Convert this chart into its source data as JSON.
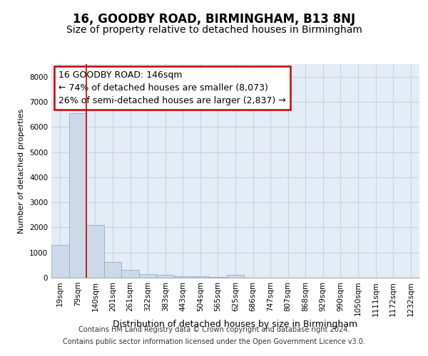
{
  "title1": "16, GOODBY ROAD, BIRMINGHAM, B13 8NJ",
  "title2": "Size of property relative to detached houses in Birmingham",
  "xlabel": "Distribution of detached houses by size in Birmingham",
  "ylabel": "Number of detached properties",
  "categories": [
    "19sqm",
    "79sqm",
    "140sqm",
    "201sqm",
    "261sqm",
    "322sqm",
    "383sqm",
    "443sqm",
    "504sqm",
    "565sqm",
    "625sqm",
    "686sqm",
    "747sqm",
    "807sqm",
    "868sqm",
    "929sqm",
    "990sqm",
    "1050sqm",
    "1111sqm",
    "1172sqm",
    "1232sqm"
  ],
  "values": [
    1300,
    6550,
    2100,
    620,
    300,
    130,
    100,
    50,
    50,
    20,
    100,
    0,
    0,
    0,
    0,
    0,
    0,
    0,
    0,
    0,
    0
  ],
  "bar_color": "#ccd9e8",
  "bar_edge_color": "#90aec8",
  "annotation_line1": "16 GOODBY ROAD: 146sqm",
  "annotation_line2": "← 74% of detached houses are smaller (8,073)",
  "annotation_line3": "26% of semi-detached houses are larger (2,837) →",
  "annotation_box_color": "#ffffff",
  "annotation_box_edge": "#cc0000",
  "red_line_color": "#cc0000",
  "grid_color": "#c8d4e4",
  "background_color": "#e4ecf5",
  "footer1": "Contains HM Land Registry data © Crown copyright and database right 2024.",
  "footer2": "Contains public sector information licensed under the Open Government Licence v3.0.",
  "ylim": [
    0,
    8500
  ],
  "yticks": [
    0,
    1000,
    2000,
    3000,
    4000,
    5000,
    6000,
    7000,
    8000
  ],
  "title1_fontsize": 12,
  "title2_fontsize": 10,
  "xlabel_fontsize": 9,
  "ylabel_fontsize": 8,
  "tick_fontsize": 7.5,
  "footer_fontsize": 7,
  "annot_fontsize": 9
}
